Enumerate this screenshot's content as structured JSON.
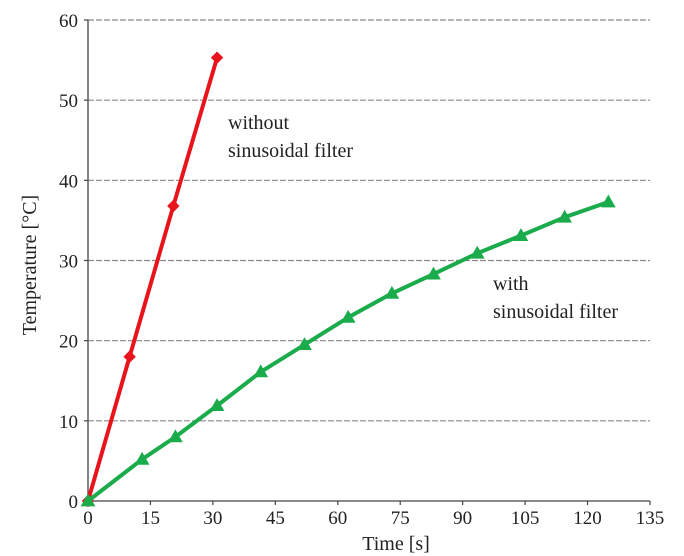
{
  "chart_data": {
    "type": "line",
    "title": "",
    "xlabel": "Time [s]",
    "ylabel": "Temperature [°C]",
    "xlim": [
      0,
      135
    ],
    "ylim": [
      0,
      60
    ],
    "xticks": [
      0,
      15,
      30,
      45,
      60,
      75,
      90,
      105,
      120,
      135
    ],
    "yticks": [
      0,
      10,
      20,
      30,
      40,
      50,
      60
    ],
    "grid": "horizontal-dashed",
    "series": [
      {
        "name": "without sinusoidal filter",
        "color": "#e8141c",
        "marker": "diamond",
        "x": [
          0,
          10,
          20.5,
          31
        ],
        "y": [
          0,
          18,
          36.8,
          55.3
        ]
      },
      {
        "name": "with sinusoidal filter",
        "color": "#1aab4b",
        "marker": "triangle",
        "x": [
          0,
          13,
          21,
          31,
          41.5,
          52,
          62.5,
          73,
          83,
          93.5,
          104,
          114.5,
          125
        ],
        "y": [
          0,
          5.2,
          8,
          11.9,
          16.1,
          19.5,
          22.9,
          25.9,
          28.3,
          30.9,
          33.1,
          35.4,
          37.3
        ]
      }
    ],
    "annotations": [
      {
        "lines": [
          "without",
          "sinusoidal filter"
        ]
      },
      {
        "lines": [
          "with",
          "sinusoidal filter"
        ]
      }
    ]
  }
}
